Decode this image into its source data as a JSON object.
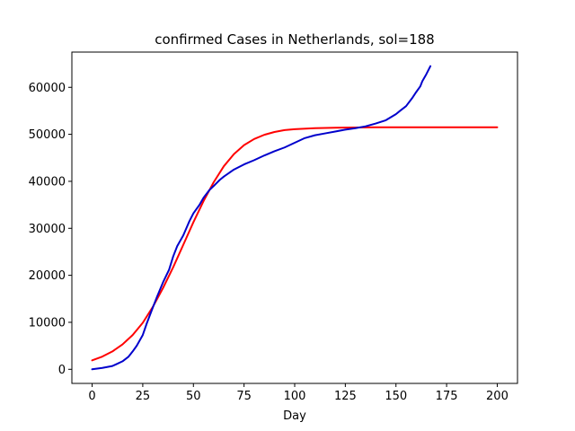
{
  "chart_data": {
    "type": "line",
    "title": "confirmed Cases in Netherlands, sol=188",
    "xlabel": "Day",
    "ylabel": "",
    "xlim": [
      -10,
      210
    ],
    "ylim": [
      -3000,
      67500
    ],
    "xticks": [
      0,
      25,
      50,
      75,
      100,
      125,
      150,
      175,
      200
    ],
    "yticks": [
      0,
      10000,
      20000,
      30000,
      40000,
      50000,
      60000
    ],
    "grid": false,
    "series": [
      {
        "color": "#ff0000",
        "x": [
          0,
          5,
          10,
          15,
          20,
          25,
          30,
          35,
          40,
          45,
          50,
          55,
          60,
          65,
          70,
          75,
          80,
          85,
          90,
          95,
          100,
          110,
          120,
          130,
          140,
          150,
          160,
          170,
          180,
          190,
          200
        ],
        "values": [
          1900,
          2700,
          3800,
          5300,
          7300,
          9900,
          13300,
          17300,
          21700,
          26500,
          31300,
          35800,
          39800,
          43200,
          45800,
          47700,
          49000,
          49900,
          50500,
          50900,
          51100,
          51300,
          51400,
          51450,
          51500,
          51500,
          51500,
          51500,
          51500,
          51500,
          51500
        ]
      },
      {
        "color": "#0000cc",
        "x": [
          0,
          5,
          10,
          12,
          15,
          18,
          20,
          22,
          25,
          27,
          30,
          32,
          35,
          38,
          40,
          42,
          45,
          48,
          50,
          53,
          55,
          58,
          60,
          63,
          65,
          70,
          75,
          80,
          85,
          90,
          95,
          100,
          105,
          110,
          115,
          120,
          125,
          130,
          135,
          140,
          145,
          150,
          152,
          155,
          158,
          160,
          162,
          163,
          165,
          167
        ],
        "values": [
          0,
          300,
          700,
          1100,
          1700,
          2700,
          3800,
          5000,
          7300,
          9800,
          13200,
          15400,
          18500,
          21200,
          24000,
          26200,
          28500,
          31500,
          33200,
          35000,
          36500,
          38200,
          39000,
          40300,
          41000,
          42500,
          43600,
          44500,
          45500,
          46400,
          47200,
          48200,
          49200,
          49800,
          50200,
          50600,
          51000,
          51300,
          51700,
          52300,
          53000,
          54300,
          55000,
          56000,
          57700,
          59000,
          60200,
          61300,
          62800,
          64500
        ]
      }
    ]
  }
}
